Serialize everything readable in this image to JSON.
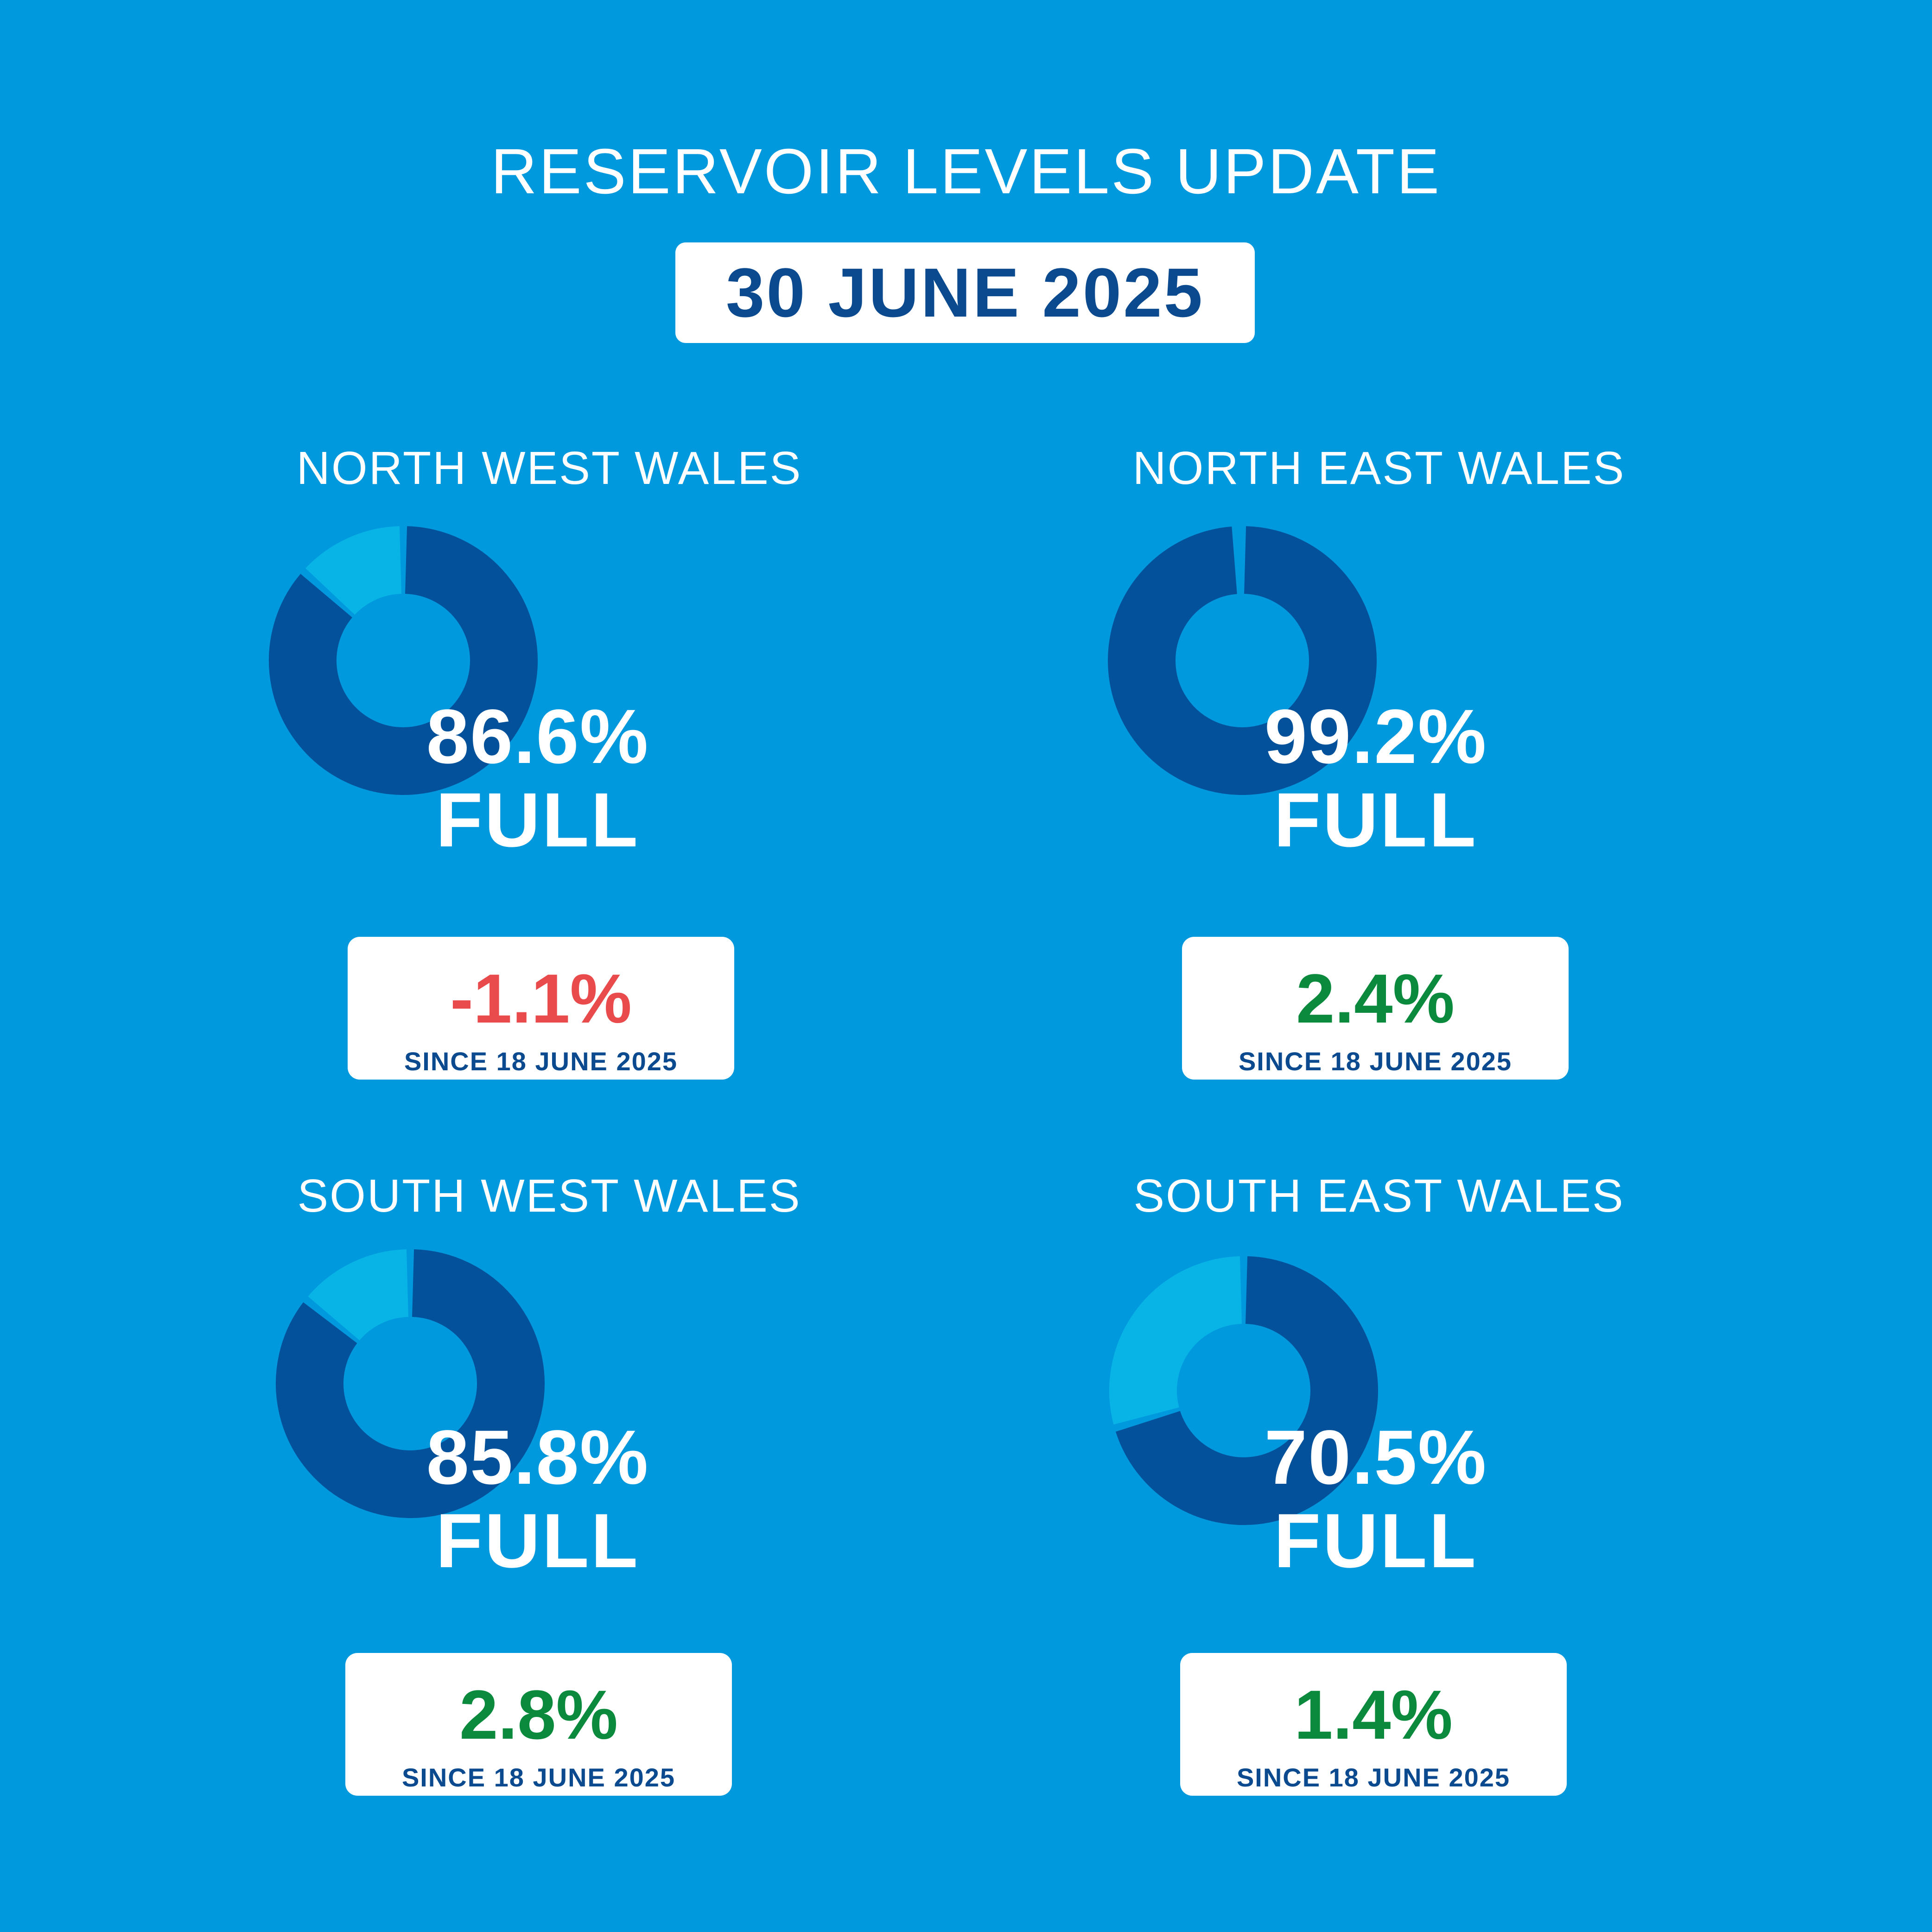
{
  "title": "RESERVOIR LEVELS UPDATE",
  "date": "30 JUNE 2025",
  "colors": {
    "background": "#0199de",
    "filled": "#03519a",
    "empty": "#08b4e6",
    "negative": "#e94a4c",
    "positive": "#0b8a3e",
    "text_dark": "#0b4a8f"
  },
  "chart_data": [
    {
      "type": "pie",
      "title": "NORTH WEST WALES",
      "values": [
        86.6,
        13.4
      ],
      "value_label": "86.6%",
      "full_label": "FULL",
      "change": {
        "value": -1.1,
        "label": "-1.1%",
        "since": "SINCE 18 JUNE 2025"
      }
    },
    {
      "type": "pie",
      "title": "NORTH EAST WALES",
      "values": [
        99.2,
        0.8
      ],
      "value_label": "99.2%",
      "full_label": "FULL",
      "change": {
        "value": 2.4,
        "label": "2.4%",
        "since": "SINCE 18 JUNE 2025"
      }
    },
    {
      "type": "pie",
      "title": "SOUTH WEST WALES",
      "values": [
        85.8,
        14.2
      ],
      "value_label": "85.8%",
      "full_label": "FULL",
      "change": {
        "value": 2.8,
        "label": "2.8%",
        "since": "SINCE 18 JUNE 2025"
      }
    },
    {
      "type": "pie",
      "title": "SOUTH EAST WALES",
      "values": [
        70.5,
        29.5
      ],
      "value_label": "70.5%",
      "full_label": "FULL",
      "change": {
        "value": 1.4,
        "label": "1.4%",
        "since": "SINCE 18 JUNE 2025"
      }
    }
  ]
}
